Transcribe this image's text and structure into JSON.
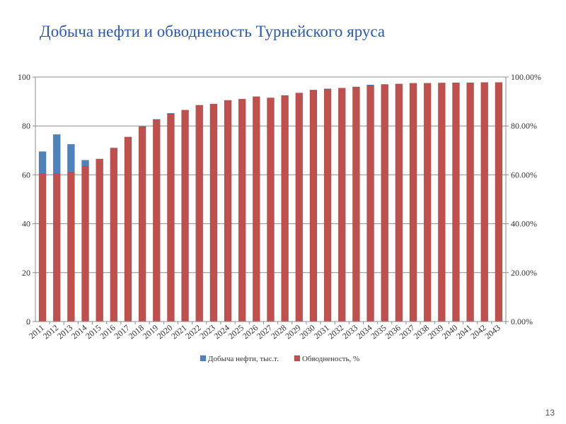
{
  "slide": {
    "title": "Добыча нефти и обводненость Турнейского яруса",
    "page_number": "13"
  },
  "chart_data": {
    "type": "bar",
    "stacked": true,
    "categories": [
      "2011",
      "2012",
      "2013",
      "2014",
      "2015",
      "2016",
      "2017",
      "2018",
      "2019",
      "2020",
      "2021",
      "2022",
      "2023",
      "2024",
      "2025",
      "2026",
      "2027",
      "2028",
      "2029",
      "2030",
      "2031",
      "2032",
      "2033",
      "2034",
      "2035",
      "2036",
      "2037",
      "2038",
      "2039",
      "2040",
      "2041",
      "2042",
      "2043"
    ],
    "series": [
      {
        "name": "Обводненость, %",
        "color": "#c0504d",
        "axis": "left",
        "values": [
          60.5,
          60.5,
          61,
          63.5,
          66.5,
          71,
          75.5,
          79.5,
          82.5,
          85,
          86.5,
          88.5,
          89,
          90.5,
          91,
          92,
          91.5,
          92.5,
          93.5,
          94.5,
          95,
          95.5,
          96,
          96.5,
          97,
          97.2,
          97.5,
          97.5,
          97.6,
          97.7,
          97.7,
          97.8,
          97.8
        ]
      },
      {
        "name": "Добыча нефти, тыс.т.",
        "color": "#4f81bd",
        "axis": "left",
        "values": [
          9,
          16,
          11.5,
          2.5,
          0,
          0,
          0,
          0.3,
          0.2,
          0.2,
          0,
          0,
          0,
          0,
          0,
          0,
          0,
          0,
          0,
          0.2,
          0.2,
          0,
          0,
          0.3,
          0,
          0,
          0,
          0,
          0,
          0,
          0,
          0,
          0
        ]
      }
    ],
    "y_left": {
      "min": 0,
      "max": 100,
      "ticks": [
        "0",
        "20",
        "40",
        "60",
        "80",
        "100"
      ]
    },
    "y_right": {
      "min": 0,
      "max": 100,
      "ticks": [
        "0.00%",
        "20.00%",
        "40.00%",
        "60.00%",
        "80.00%",
        "100.00%"
      ]
    },
    "grid": true,
    "legend": {
      "position": "bottom",
      "items": [
        {
          "label": "Добыча нефти, тыс.т.",
          "color": "#4f81bd"
        },
        {
          "label": "Обводненость, %",
          "color": "#c0504d"
        }
      ]
    },
    "xlabel": "",
    "ylabel": ""
  }
}
